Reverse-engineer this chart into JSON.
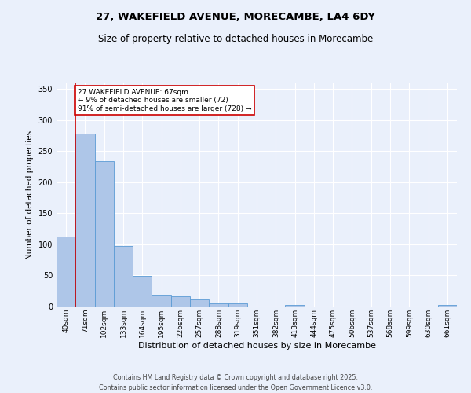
{
  "title_line1": "27, WAKEFIELD AVENUE, MORECAMBE, LA4 6DY",
  "title_line2": "Size of property relative to detached houses in Morecambe",
  "xlabel": "Distribution of detached houses by size in Morecambe",
  "ylabel": "Number of detached properties",
  "categories": [
    "40sqm",
    "71sqm",
    "102sqm",
    "133sqm",
    "164sqm",
    "195sqm",
    "226sqm",
    "257sqm",
    "288sqm",
    "319sqm",
    "351sqm",
    "382sqm",
    "413sqm",
    "444sqm",
    "475sqm",
    "506sqm",
    "537sqm",
    "568sqm",
    "599sqm",
    "630sqm",
    "661sqm"
  ],
  "values": [
    113,
    278,
    234,
    97,
    49,
    19,
    17,
    12,
    5,
    5,
    0,
    0,
    3,
    0,
    0,
    0,
    0,
    0,
    0,
    0,
    3
  ],
  "bar_color": "#aec6e8",
  "bar_edge_color": "#5b9bd5",
  "background_color": "#eaf0fb",
  "grid_color": "#ffffff",
  "vline_color": "#cc0000",
  "annotation_text": "27 WAKEFIELD AVENUE: 67sqm\n← 9% of detached houses are smaller (72)\n91% of semi-detached houses are larger (728) →",
  "annotation_box_color": "white",
  "annotation_box_edge": "#cc0000",
  "ylim": [
    0,
    360
  ],
  "yticks": [
    0,
    50,
    100,
    150,
    200,
    250,
    300,
    350
  ],
  "footer_line1": "Contains HM Land Registry data © Crown copyright and database right 2025.",
  "footer_line2": "Contains public sector information licensed under the Open Government Licence v3.0."
}
